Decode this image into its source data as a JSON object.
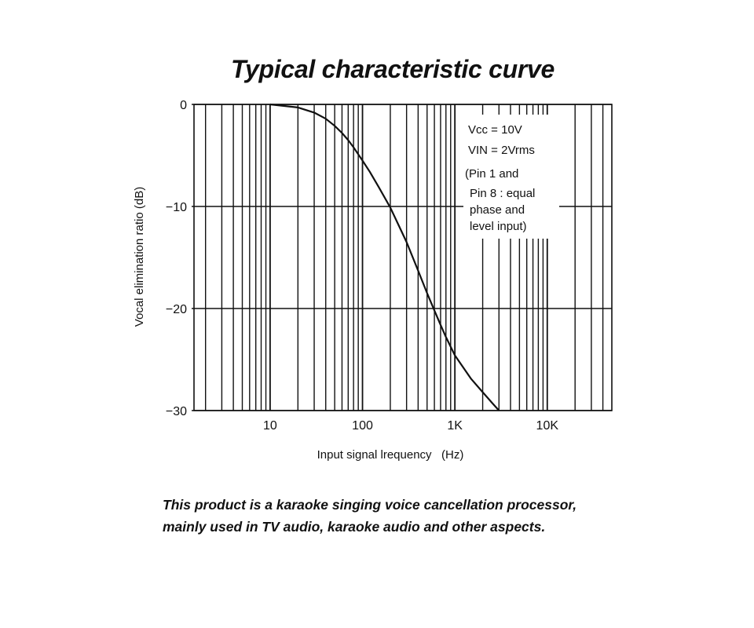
{
  "page": {
    "title": "Typical characteristic curve",
    "caption_lines": [
      "This product is a karaoke singing voice cancellation processor,",
      "mainly used in TV audio, karaoke audio and other aspects."
    ]
  },
  "chart_data": {
    "type": "line",
    "title": "Typical characteristic curve",
    "xlabel": "Input signal lrequency   (Hz)",
    "ylabel": "Vocal elimination ratio   (dB)",
    "x_scale": "log",
    "xlim": [
      1.5,
      50000
    ],
    "ylim": [
      -30,
      0
    ],
    "x_ticks": [
      {
        "value": 10,
        "label": "10"
      },
      {
        "value": 100,
        "label": "100"
      },
      {
        "value": 1000,
        "label": "1K"
      },
      {
        "value": 10000,
        "label": "10K"
      }
    ],
    "y_ticks": [
      {
        "value": 0,
        "label": "0"
      },
      {
        "value": -10,
        "label": "−10"
      },
      {
        "value": -20,
        "label": "−20"
      },
      {
        "value": -30,
        "label": "−30"
      }
    ],
    "grid": true,
    "annotation": [
      "Vcc = 10V",
      "VIN = 2Vrms",
      "(Pin 1 and",
      "Pin 8 : equal",
      "phase and",
      "level input)"
    ],
    "series": [
      {
        "x": [
          10,
          20,
          30,
          40,
          50,
          60,
          70,
          80,
          90,
          100,
          120,
          150,
          200,
          300,
          400,
          500,
          600,
          700,
          800,
          1000,
          1500,
          2000,
          2500,
          3000
        ],
        "y": [
          0,
          -0.3,
          -0.8,
          -1.4,
          -2.1,
          -2.8,
          -3.5,
          -4.2,
          -4.9,
          -5.5,
          -6.6,
          -8.1,
          -10.1,
          -13.5,
          -16.3,
          -18.5,
          -20.2,
          -21.6,
          -22.8,
          -24.6,
          -26.9,
          -28.2,
          -29.2,
          -30
        ]
      }
    ]
  }
}
